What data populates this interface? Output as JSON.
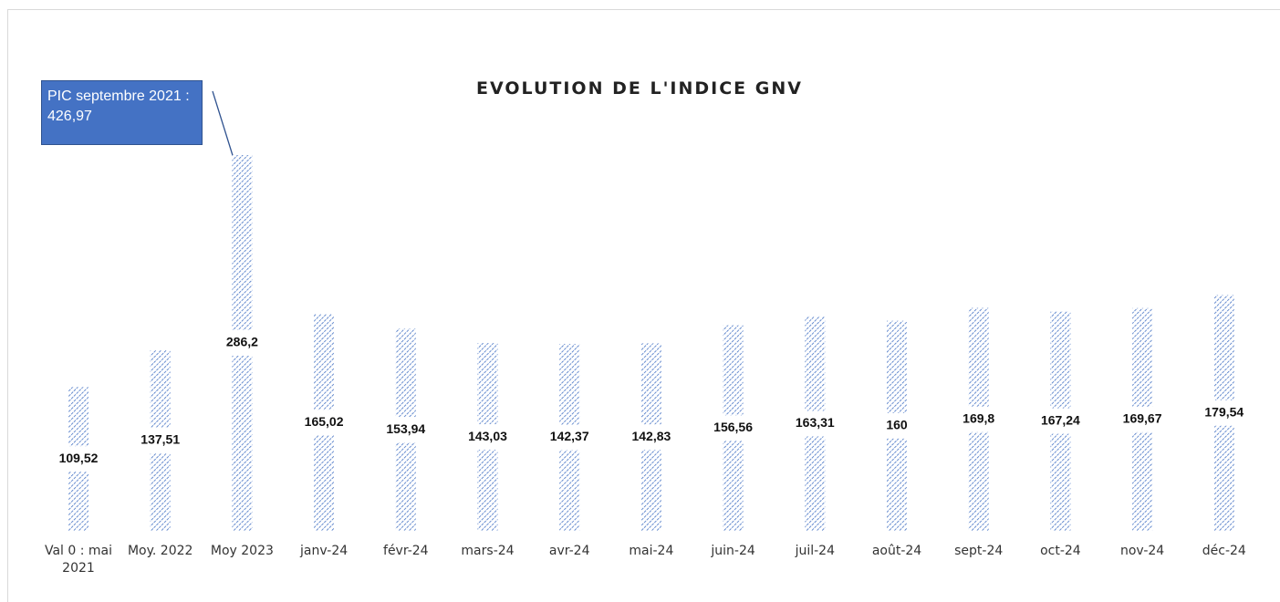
{
  "chart_data": {
    "type": "bar",
    "title": "EVOLUTION DE L'INDICE GNV",
    "annotation": "PIC septembre 2021 : 426,97",
    "categories": [
      "Val 0 : mai 2021",
      "Moy. 2022",
      "Moy 2023",
      "janv-24",
      "févr-24",
      "mars-24",
      "avr-24",
      "mai-24",
      "juin-24",
      "juil-24",
      "août-24",
      "sept-24",
      "oct-24",
      "nov-24",
      "déc-24"
    ],
    "values": [
      109.52,
      137.51,
      286.2,
      165.02,
      153.94,
      143.03,
      142.37,
      142.83,
      156.56,
      163.31,
      160,
      169.8,
      167.24,
      169.67,
      179.54
    ],
    "value_labels": [
      "109,52",
      "137,51",
      "286,2",
      "165,02",
      "153,94",
      "143,03",
      "142,37",
      "142,83",
      "156,56",
      "163,31",
      "160",
      "169,8",
      "167,24",
      "169,67",
      "179,54"
    ],
    "color": "#4472c4"
  }
}
